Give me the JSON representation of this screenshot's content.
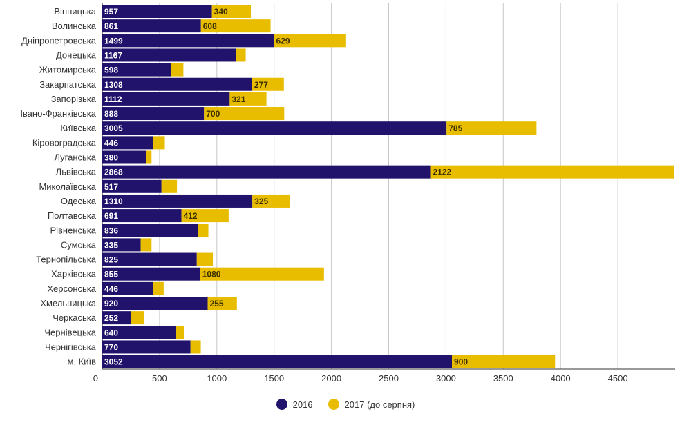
{
  "chart_data": {
    "type": "bar",
    "orientation": "horizontal",
    "stacked": true,
    "title": "",
    "xlabel": "",
    "ylabel": "",
    "xlim": [
      0,
      5000
    ],
    "xticks": [
      0,
      500,
      1000,
      1500,
      2000,
      2500,
      3000,
      3500,
      4000,
      4500
    ],
    "grid": true,
    "legend_position": "bottom",
    "categories": [
      "Вінницька",
      "Волинська",
      "Дніпропетровська",
      "Донецька",
      "Житомирська",
      "Закарпатська",
      "Запорізька",
      "Івано-Франківська",
      "Київська",
      "Кіровоградська",
      "Луганська",
      "Львівська",
      "Миколаївська",
      "Одеська",
      "Полтавська",
      "Рівненська",
      "Сумська",
      "Тернопільська",
      "Харківська",
      "Херсонська",
      "Хмельницька",
      "Черкаська",
      "Чернівецька",
      "Чернігівська",
      "м. Київ"
    ],
    "series": [
      {
        "name": "2016",
        "color": "#21136b",
        "values": [
          957,
          861,
          1499,
          1167,
          598,
          1308,
          1112,
          888,
          3005,
          446,
          380,
          2868,
          517,
          1310,
          691,
          836,
          335,
          825,
          855,
          446,
          920,
          252,
          640,
          770,
          3052
        ],
        "labels": [
          "957",
          "861",
          "1499",
          "1167",
          "598",
          "1308",
          "1112",
          "888",
          "3005",
          "446",
          "380",
          "2868",
          "517",
          "1310",
          "691",
          "836",
          "335",
          "825",
          "855",
          "446",
          "920",
          "252",
          "640",
          "770",
          "3052"
        ]
      },
      {
        "name": "2017 (до серпня)",
        "color": "#e8bd00",
        "values": [
          340,
          608,
          629,
          85,
          110,
          277,
          321,
          700,
          785,
          100,
          50,
          2122,
          135,
          325,
          412,
          90,
          95,
          140,
          1080,
          90,
          255,
          115,
          75,
          90,
          900
        ],
        "labels": [
          "340",
          "608",
          "629",
          "",
          "",
          "277",
          "321",
          "700",
          "785",
          "",
          "",
          "2122",
          "",
          "325",
          "412",
          "",
          "",
          "",
          "1080",
          "",
          "255",
          "",
          "",
          "",
          "900"
        ]
      }
    ]
  }
}
